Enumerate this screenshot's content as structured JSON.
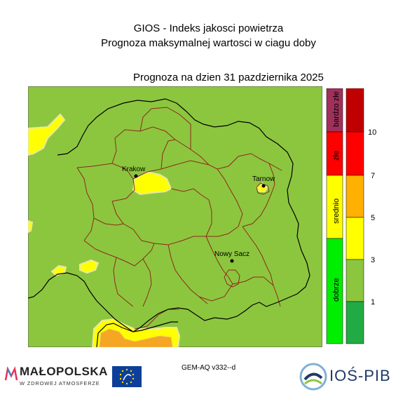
{
  "header": {
    "title_line1": "GIOS - Indeks jakosci powietrza",
    "title_line2": "Prognoza maksymalnej wartosci w ciagu doby",
    "forecast_date_line": "Prognoza na dzien  31 pazdziernika 2025"
  },
  "map": {
    "cities": [
      {
        "name": "Krakow"
      },
      {
        "name": "Tarnow"
      },
      {
        "name": "Nowy Sacz"
      }
    ],
    "colors": {
      "background_dobre": "#8cc63f",
      "srednie": "#ffff00",
      "orange_zone": "#f5a623",
      "region_border": "#000000",
      "district_border": "#8b2a1a"
    }
  },
  "legend": {
    "categories": [
      {
        "label": "bardzo złe",
        "color": "#a0305a"
      },
      {
        "label": "złe",
        "color": "#ff0000"
      },
      {
        "label": "srednio",
        "color": "#ffff00"
      },
      {
        "label": "dobrze",
        "color": "#00ee00"
      }
    ],
    "scale_steps": [
      {
        "color": "#c00000"
      },
      {
        "color": "#ff0000"
      },
      {
        "color": "#ffb000"
      },
      {
        "color": "#ffff00"
      },
      {
        "color": "#8cc63f"
      },
      {
        "color": "#22aa44"
      }
    ],
    "scale_labels": [
      "10",
      "7",
      "5",
      "3",
      "1"
    ]
  },
  "footer": {
    "model_label": "GEM-AQ v332--d",
    "malopolska_logo_text": "MAŁOPOLSKA",
    "malopolska_logo_subtext": "W ZDROWEJ ATMOSFERZE",
    "ios_logo_text": "IOŚ-PIB"
  }
}
